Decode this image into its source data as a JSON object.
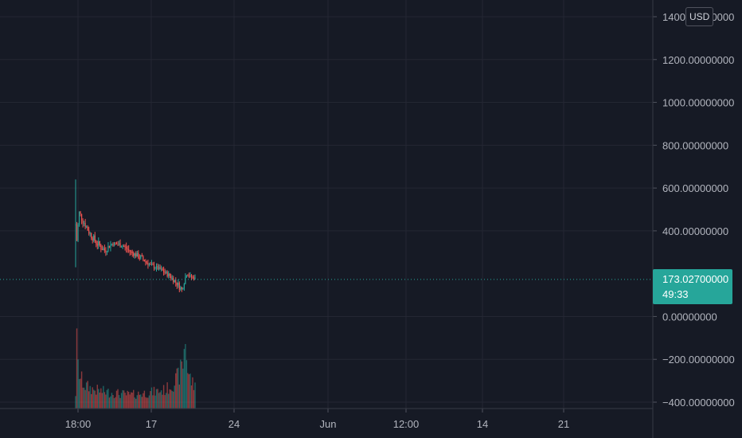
{
  "currency": "USD",
  "colors": {
    "background": "#161a25",
    "grid": "#242733",
    "axis_text": "#b2b5be",
    "up": "#26a69a",
    "down": "#ef5350",
    "price_tag": "#26a69a"
  },
  "last_price": {
    "value": "173.02700000",
    "countdown": "49:33"
  },
  "chart_data": {
    "type": "candlestick",
    "y_axis": {
      "min": -420,
      "max": 1440,
      "ticks": [
        {
          "value": 1400,
          "label": "1400.00000000"
        },
        {
          "value": 1200,
          "label": "1200.00000000"
        },
        {
          "value": 1000,
          "label": "1000.00000000"
        },
        {
          "value": 800,
          "label": "800.00000000"
        },
        {
          "value": 600,
          "label": "600.00000000"
        },
        {
          "value": 400,
          "label": "400.00000000"
        },
        {
          "value": 0,
          "label": "0.00000000"
        },
        {
          "value": -200,
          "label": "−200.00000000"
        },
        {
          "value": -400,
          "label": "−400.00000000"
        }
      ]
    },
    "x_axis": {
      "ticks": [
        {
          "index": 0,
          "label": "18:00"
        },
        {
          "index": 1,
          "label": "17"
        },
        {
          "index": 2,
          "label": "24"
        },
        {
          "index": 3,
          "label": "Jun"
        },
        {
          "index": 4,
          "label": "12:00"
        },
        {
          "index": 5,
          "label": "14"
        },
        {
          "index": 6,
          "label": "21"
        }
      ]
    },
    "last_price": 173.027,
    "price_anchors": [
      [
        0,
        230,
        640
      ],
      [
        1,
        300,
        420
      ],
      [
        3,
        470,
        500
      ],
      [
        6,
        430,
        470
      ],
      [
        12,
        370,
        400
      ],
      [
        18,
        320,
        360
      ],
      [
        24,
        290,
        330
      ],
      [
        30,
        330,
        350
      ],
      [
        38,
        320,
        350
      ],
      [
        46,
        290,
        310
      ],
      [
        54,
        260,
        290
      ],
      [
        62,
        230,
        250
      ],
      [
        70,
        210,
        230
      ],
      [
        78,
        180,
        200
      ],
      [
        84,
        140,
        170
      ],
      [
        88,
        110,
        140
      ],
      [
        90,
        150,
        180
      ],
      [
        92,
        190,
        210
      ],
      [
        95,
        180,
        195
      ],
      [
        98,
        175,
        185
      ]
    ],
    "volume_anchors": [
      [
        0,
        0.2
      ],
      [
        1,
        0.85
      ],
      [
        2,
        0.55
      ],
      [
        4,
        0.4
      ],
      [
        8,
        0.3
      ],
      [
        15,
        0.25
      ],
      [
        25,
        0.22
      ],
      [
        35,
        0.2
      ],
      [
        45,
        0.18
      ],
      [
        55,
        0.2
      ],
      [
        65,
        0.22
      ],
      [
        75,
        0.25
      ],
      [
        82,
        0.35
      ],
      [
        86,
        0.45
      ],
      [
        89,
        0.6
      ],
      [
        91,
        0.95
      ],
      [
        93,
        0.5
      ],
      [
        95,
        0.4
      ],
      [
        98,
        0.3
      ]
    ]
  }
}
